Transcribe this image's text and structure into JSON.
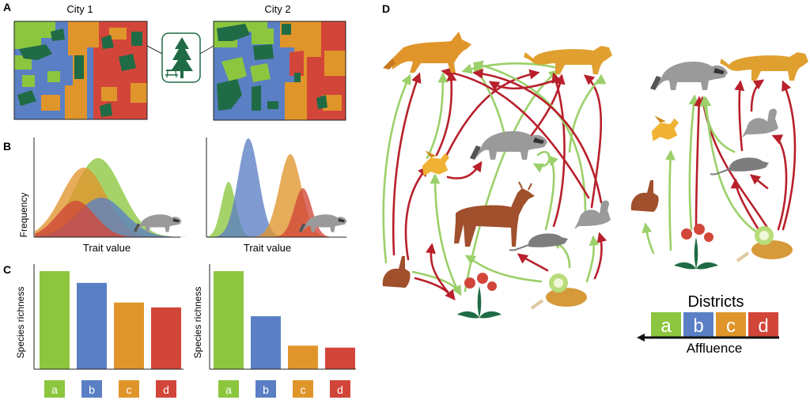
{
  "panels": {
    "a": {
      "letter": "A",
      "city1": "City 1",
      "city2": "City 2"
    },
    "b": {
      "letter": "B",
      "ylabel": "Frequency",
      "xlabel": "Trait value"
    },
    "c": {
      "letter": "C",
      "ylabel": "Species richness",
      "districts": [
        "a",
        "b",
        "c",
        "d"
      ]
    },
    "d": {
      "letter": "D",
      "legend_title": "Districts",
      "legend_items": [
        "a",
        "b",
        "c",
        "d"
      ],
      "axis_label": "Affluence"
    }
  },
  "colors": {
    "a": "#8cc63f",
    "b": "#5b7fc4",
    "c": "#e0952b",
    "d": "#d2463a",
    "green_space": "#1f6b45",
    "arrow_red": "#b8202b",
    "arrow_green": "#9bd06a"
  },
  "chart_data": [
    {
      "type": "bar",
      "panel": "C-left",
      "categories": [
        "a",
        "b",
        "c",
        "d"
      ],
      "values": [
        100,
        88,
        68,
        63
      ],
      "ylabel": "Species richness"
    },
    {
      "type": "bar",
      "panel": "C-right",
      "categories": [
        "a",
        "b",
        "c",
        "d"
      ],
      "values": [
        100,
        54,
        24,
        22
      ],
      "ylabel": "Species richness"
    }
  ],
  "icons": [
    "pine-tree-icon",
    "picnic-table-icon",
    "coyote-icon",
    "puma-icon",
    "raccoon-icon",
    "bird-icon",
    "deer-icon",
    "pigeon-icon",
    "rat-icon",
    "rabbit-icon",
    "flower-icon",
    "food-icon"
  ]
}
